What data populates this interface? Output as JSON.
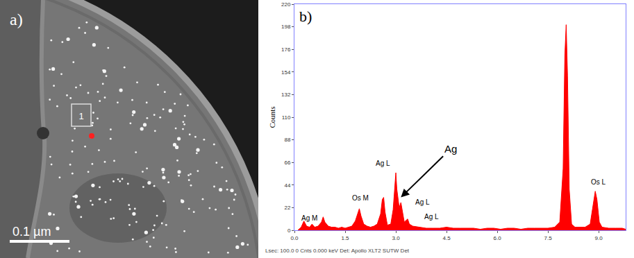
{
  "image_panel": {
    "label": "a)",
    "box_label": "1",
    "scale_bar": "0.1 µm"
  },
  "chart_data": {
    "type": "area",
    "panel_label": "b)",
    "ylabel": "Counts",
    "footer": "Lsec: 100.0 0 Cnts 0.000 keV Det: Apollo XLT2 SUTW Det",
    "color": "#ff0000",
    "grid": false,
    "xlim": [
      0,
      9.8
    ],
    "xticks": [
      {
        "value": 0,
        "label": "0.0"
      },
      {
        "value": 1.5,
        "label": "1.5"
      },
      {
        "value": 3,
        "label": "3.0"
      },
      {
        "value": 4.5,
        "label": "4.5"
      },
      {
        "value": 6,
        "label": "6.0"
      },
      {
        "value": 7.5,
        "label": "7.5"
      },
      {
        "value": 9,
        "label": "9.0"
      }
    ],
    "ylim": [
      0,
      220
    ],
    "yticks": [
      0,
      22,
      44,
      66,
      88,
      110,
      132,
      154,
      176,
      198,
      220
    ],
    "x": [
      0.1,
      0.2,
      0.28,
      0.36,
      0.45,
      0.52,
      0.6,
      0.7,
      0.8,
      0.85,
      0.9,
      1.0,
      1.1,
      1.2,
      1.3,
      1.4,
      1.5,
      1.6,
      1.7,
      1.8,
      1.88,
      1.92,
      1.97,
      2.05,
      2.15,
      2.25,
      2.35,
      2.45,
      2.55,
      2.6,
      2.64,
      2.68,
      2.75,
      2.85,
      2.92,
      2.98,
      3.0,
      3.03,
      3.1,
      3.15,
      3.19,
      3.25,
      3.35,
      3.4,
      3.5,
      3.7,
      3.9,
      4.1,
      4.3,
      4.5,
      4.7,
      4.9,
      5.1,
      5.3,
      5.5,
      5.7,
      5.9,
      6.1,
      6.3,
      6.5,
      6.7,
      6.9,
      7.1,
      7.3,
      7.5,
      7.7,
      7.85,
      7.95,
      8.0,
      8.04,
      8.08,
      8.13,
      8.2,
      8.3,
      8.45,
      8.6,
      8.75,
      8.85,
      8.9,
      8.95,
      9.02,
      9.1,
      9.3,
      9.5,
      9.7,
      9.8
    ],
    "values": [
      0,
      3,
      9,
      4,
      3,
      6,
      3,
      4,
      8,
      13,
      8,
      4,
      3,
      3,
      2,
      3,
      2,
      3,
      4,
      9,
      18,
      21,
      14,
      6,
      4,
      3,
      4,
      6,
      16,
      30,
      32,
      18,
      5,
      6,
      20,
      50,
      56,
      40,
      22,
      27,
      18,
      8,
      11,
      6,
      4,
      3,
      2,
      2,
      2,
      3,
      2,
      2,
      2,
      2,
      1,
      2,
      2,
      1,
      2,
      2,
      1,
      2,
      2,
      2,
      2,
      3,
      8,
      60,
      170,
      200,
      150,
      40,
      6,
      3,
      3,
      3,
      6,
      28,
      38,
      30,
      8,
      3,
      2,
      2,
      2,
      1
    ],
    "annotations": [
      {
        "text": "Ag M",
        "x": 0.45,
        "y": 7
      },
      {
        "text": "Os M",
        "x": 1.95,
        "y": 26
      },
      {
        "text": "Ag L",
        "x": 2.62,
        "y": 60
      },
      {
        "text": "Ag L",
        "x": 3.8,
        "y": 22
      },
      {
        "text": "Ag L",
        "x": 4.05,
        "y": 8
      },
      {
        "text": "Os L",
        "x": 9.0,
        "y": 42
      },
      {
        "text": "Ag",
        "x": 3.15,
        "y": 32,
        "arrow_from": [
          4.4,
          72
        ]
      }
    ]
  }
}
